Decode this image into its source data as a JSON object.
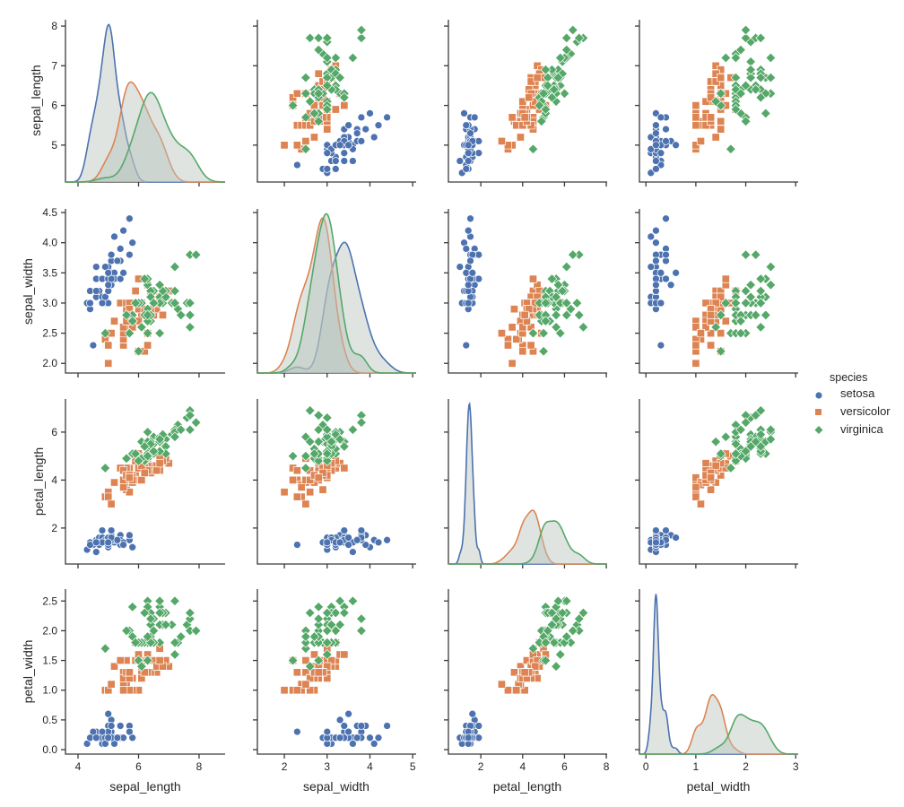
{
  "chart_data": {
    "type": "scatter",
    "subtype": "pairplot",
    "diagonal": "kde",
    "variables": [
      "sepal_length",
      "sepal_width",
      "petal_length",
      "petal_width"
    ],
    "ticks": {
      "sepal_length": [
        "4",
        "6",
        "8"
      ],
      "sepal_length_row": [
        "5",
        "6",
        "7",
        "8"
      ],
      "sepal_width": [
        "2",
        "3",
        "4",
        "5"
      ],
      "sepal_width_row": [
        "2.0",
        "2.5",
        "3.0",
        "3.5",
        "4.0",
        "4.5"
      ],
      "petal_length": [
        "2",
        "4",
        "6",
        "8"
      ],
      "petal_length_row": [
        "2",
        "4",
        "6"
      ],
      "petal_width": [
        "0",
        "1",
        "2",
        "3"
      ],
      "petal_width_row": [
        "0.0",
        "0.5",
        "1.0",
        "1.5",
        "2.0",
        "2.5"
      ]
    },
    "axis_ranges": {
      "sepal_length_x": [
        3.585,
        8.86
      ],
      "sepal_width_x": [
        1.37,
        5.08
      ],
      "petal_length_x": [
        0.45,
        8.04
      ],
      "petal_width_x": [
        -0.13,
        3.05
      ],
      "sepal_length_y": [
        4.07,
        8.16
      ],
      "sepal_width_y": [
        1.84,
        4.56
      ],
      "petal_length_y": [
        0.5,
        7.38
      ],
      "petal_width_y": [
        -0.075,
        2.7
      ]
    },
    "grid": false,
    "legend": {
      "title": "species",
      "placement": "right"
    },
    "series": [
      {
        "name": "setosa",
        "color": "#4c72b0",
        "marker": "circle",
        "values": [
          [
            5.1,
            3.5,
            1.4,
            0.2
          ],
          [
            4.9,
            3.0,
            1.4,
            0.2
          ],
          [
            4.7,
            3.2,
            1.3,
            0.2
          ],
          [
            4.6,
            3.1,
            1.5,
            0.2
          ],
          [
            5.0,
            3.6,
            1.4,
            0.2
          ],
          [
            5.4,
            3.9,
            1.7,
            0.4
          ],
          [
            4.6,
            3.4,
            1.4,
            0.3
          ],
          [
            5.0,
            3.4,
            1.5,
            0.2
          ],
          [
            4.4,
            2.9,
            1.4,
            0.2
          ],
          [
            4.9,
            3.1,
            1.5,
            0.1
          ],
          [
            5.4,
            3.7,
            1.5,
            0.2
          ],
          [
            4.8,
            3.4,
            1.6,
            0.2
          ],
          [
            4.8,
            3.0,
            1.4,
            0.1
          ],
          [
            4.3,
            3.0,
            1.1,
            0.1
          ],
          [
            5.8,
            4.0,
            1.2,
            0.2
          ],
          [
            5.7,
            4.4,
            1.5,
            0.4
          ],
          [
            5.4,
            3.9,
            1.3,
            0.4
          ],
          [
            5.1,
            3.5,
            1.4,
            0.3
          ],
          [
            5.7,
            3.8,
            1.7,
            0.3
          ],
          [
            5.1,
            3.8,
            1.5,
            0.3
          ],
          [
            5.4,
            3.4,
            1.7,
            0.2
          ],
          [
            5.1,
            3.7,
            1.5,
            0.4
          ],
          [
            4.6,
            3.6,
            1.0,
            0.2
          ],
          [
            5.1,
            3.3,
            1.7,
            0.5
          ],
          [
            4.8,
            3.4,
            1.9,
            0.2
          ],
          [
            5.0,
            3.0,
            1.6,
            0.2
          ],
          [
            5.0,
            3.4,
            1.6,
            0.4
          ],
          [
            5.2,
            3.5,
            1.5,
            0.2
          ],
          [
            5.2,
            3.4,
            1.4,
            0.2
          ],
          [
            4.7,
            3.2,
            1.6,
            0.2
          ],
          [
            4.8,
            3.1,
            1.6,
            0.2
          ],
          [
            5.4,
            3.4,
            1.5,
            0.4
          ],
          [
            5.2,
            4.1,
            1.5,
            0.1
          ],
          [
            5.5,
            4.2,
            1.4,
            0.2
          ],
          [
            4.9,
            3.1,
            1.5,
            0.2
          ],
          [
            5.0,
            3.2,
            1.2,
            0.2
          ],
          [
            5.5,
            3.5,
            1.3,
            0.2
          ],
          [
            4.9,
            3.6,
            1.4,
            0.1
          ],
          [
            4.4,
            3.0,
            1.3,
            0.2
          ],
          [
            5.1,
            3.4,
            1.5,
            0.2
          ],
          [
            5.0,
            3.5,
            1.3,
            0.3
          ],
          [
            4.5,
            2.3,
            1.3,
            0.3
          ],
          [
            4.4,
            3.2,
            1.3,
            0.2
          ],
          [
            5.0,
            3.5,
            1.6,
            0.6
          ],
          [
            5.1,
            3.8,
            1.9,
            0.4
          ],
          [
            4.8,
            3.0,
            1.4,
            0.3
          ],
          [
            5.1,
            3.8,
            1.6,
            0.2
          ],
          [
            4.6,
            3.2,
            1.4,
            0.2
          ],
          [
            5.3,
            3.7,
            1.5,
            0.2
          ],
          [
            5.0,
            3.3,
            1.4,
            0.2
          ]
        ]
      },
      {
        "name": "versicolor",
        "color": "#dd8452",
        "marker": "square",
        "values": [
          [
            7.0,
            3.2,
            4.7,
            1.4
          ],
          [
            6.4,
            3.2,
            4.5,
            1.5
          ],
          [
            6.9,
            3.1,
            4.9,
            1.5
          ],
          [
            5.5,
            2.3,
            4.0,
            1.3
          ],
          [
            6.5,
            2.8,
            4.6,
            1.5
          ],
          [
            5.7,
            2.8,
            4.5,
            1.3
          ],
          [
            6.3,
            3.3,
            4.7,
            1.6
          ],
          [
            4.9,
            2.4,
            3.3,
            1.0
          ],
          [
            6.6,
            2.9,
            4.6,
            1.3
          ],
          [
            5.2,
            2.7,
            3.9,
            1.4
          ],
          [
            5.0,
            2.0,
            3.5,
            1.0
          ],
          [
            5.9,
            3.0,
            4.2,
            1.5
          ],
          [
            6.0,
            2.2,
            4.0,
            1.0
          ],
          [
            6.1,
            2.9,
            4.7,
            1.4
          ],
          [
            5.6,
            2.9,
            3.6,
            1.3
          ],
          [
            6.7,
            3.1,
            4.4,
            1.4
          ],
          [
            5.6,
            3.0,
            4.5,
            1.5
          ],
          [
            5.8,
            2.7,
            4.1,
            1.0
          ],
          [
            6.2,
            2.2,
            4.5,
            1.5
          ],
          [
            5.6,
            2.5,
            3.9,
            1.1
          ],
          [
            5.9,
            3.2,
            4.8,
            1.8
          ],
          [
            6.1,
            2.8,
            4.0,
            1.3
          ],
          [
            6.3,
            2.5,
            4.9,
            1.5
          ],
          [
            6.1,
            2.8,
            4.7,
            1.2
          ],
          [
            6.4,
            2.9,
            4.3,
            1.3
          ],
          [
            6.6,
            3.0,
            4.4,
            1.4
          ],
          [
            6.8,
            2.8,
            4.8,
            1.4
          ],
          [
            6.7,
            3.0,
            5.0,
            1.7
          ],
          [
            6.0,
            2.9,
            4.5,
            1.5
          ],
          [
            5.7,
            2.6,
            3.5,
            1.0
          ],
          [
            5.5,
            2.4,
            3.8,
            1.1
          ],
          [
            5.5,
            2.4,
            3.7,
            1.0
          ],
          [
            5.8,
            2.7,
            3.9,
            1.2
          ],
          [
            6.0,
            2.7,
            5.1,
            1.6
          ],
          [
            5.4,
            3.0,
            4.5,
            1.5
          ],
          [
            6.0,
            3.4,
            4.5,
            1.6
          ],
          [
            6.7,
            3.1,
            4.7,
            1.5
          ],
          [
            6.3,
            2.3,
            4.4,
            1.3
          ],
          [
            5.6,
            3.0,
            4.1,
            1.3
          ],
          [
            5.5,
            2.5,
            4.0,
            1.3
          ],
          [
            5.5,
            2.6,
            4.4,
            1.2
          ],
          [
            6.1,
            3.0,
            4.6,
            1.4
          ],
          [
            5.8,
            2.6,
            4.0,
            1.2
          ],
          [
            5.0,
            2.3,
            3.3,
            1.0
          ],
          [
            5.6,
            2.7,
            4.2,
            1.3
          ],
          [
            5.7,
            3.0,
            4.2,
            1.2
          ],
          [
            5.7,
            2.9,
            4.2,
            1.3
          ],
          [
            6.2,
            2.9,
            4.3,
            1.3
          ],
          [
            5.1,
            2.5,
            3.0,
            1.1
          ],
          [
            5.7,
            2.8,
            4.1,
            1.3
          ]
        ]
      },
      {
        "name": "virginica",
        "color": "#55a868",
        "marker": "diamond",
        "values": [
          [
            6.3,
            3.3,
            6.0,
            2.5
          ],
          [
            5.8,
            2.7,
            5.1,
            1.9
          ],
          [
            7.1,
            3.0,
            5.9,
            2.1
          ],
          [
            6.3,
            2.9,
            5.6,
            1.8
          ],
          [
            6.5,
            3.0,
            5.8,
            2.2
          ],
          [
            7.6,
            3.0,
            6.6,
            2.1
          ],
          [
            4.9,
            2.5,
            4.5,
            1.7
          ],
          [
            7.3,
            2.9,
            6.3,
            1.8
          ],
          [
            6.7,
            2.5,
            5.8,
            1.8
          ],
          [
            7.2,
            3.6,
            6.1,
            2.5
          ],
          [
            6.5,
            3.2,
            5.1,
            2.0
          ],
          [
            6.4,
            2.7,
            5.3,
            1.9
          ],
          [
            6.8,
            3.0,
            5.5,
            2.1
          ],
          [
            5.7,
            2.5,
            5.0,
            2.0
          ],
          [
            5.8,
            2.8,
            5.1,
            2.4
          ],
          [
            6.4,
            3.2,
            5.3,
            2.3
          ],
          [
            6.5,
            3.0,
            5.5,
            1.8
          ],
          [
            7.7,
            3.8,
            6.7,
            2.2
          ],
          [
            7.7,
            2.6,
            6.9,
            2.3
          ],
          [
            6.0,
            2.2,
            5.0,
            1.5
          ],
          [
            6.9,
            3.2,
            5.7,
            2.3
          ],
          [
            5.6,
            2.8,
            4.9,
            2.0
          ],
          [
            7.7,
            2.8,
            6.7,
            2.0
          ],
          [
            6.3,
            2.7,
            4.9,
            1.8
          ],
          [
            6.7,
            3.3,
            5.7,
            2.1
          ],
          [
            7.2,
            3.2,
            6.0,
            1.8
          ],
          [
            6.2,
            2.8,
            4.8,
            1.8
          ],
          [
            6.1,
            3.0,
            4.9,
            1.8
          ],
          [
            6.4,
            2.8,
            5.6,
            2.1
          ],
          [
            7.2,
            3.0,
            5.8,
            1.6
          ],
          [
            7.4,
            2.8,
            6.1,
            1.9
          ],
          [
            7.9,
            3.8,
            6.4,
            2.0
          ],
          [
            6.4,
            2.8,
            5.6,
            2.2
          ],
          [
            6.3,
            2.8,
            5.1,
            1.5
          ],
          [
            6.1,
            2.6,
            5.6,
            1.4
          ],
          [
            7.7,
            3.0,
            6.1,
            2.3
          ],
          [
            6.3,
            3.4,
            5.6,
            2.4
          ],
          [
            6.4,
            3.1,
            5.5,
            1.8
          ],
          [
            6.0,
            3.0,
            4.8,
            1.8
          ],
          [
            6.9,
            3.1,
            5.4,
            2.1
          ],
          [
            6.7,
            3.1,
            5.6,
            2.4
          ],
          [
            6.9,
            3.1,
            5.1,
            2.3
          ],
          [
            5.8,
            2.7,
            5.1,
            1.9
          ],
          [
            6.8,
            3.2,
            5.9,
            2.3
          ],
          [
            6.7,
            3.3,
            5.7,
            2.5
          ],
          [
            6.7,
            3.0,
            5.2,
            2.3
          ],
          [
            6.3,
            2.5,
            5.0,
            1.9
          ],
          [
            6.5,
            3.0,
            5.2,
            2.0
          ],
          [
            6.2,
            3.4,
            5.4,
            2.3
          ],
          [
            5.9,
            3.0,
            5.1,
            1.8
          ]
        ]
      }
    ]
  }
}
